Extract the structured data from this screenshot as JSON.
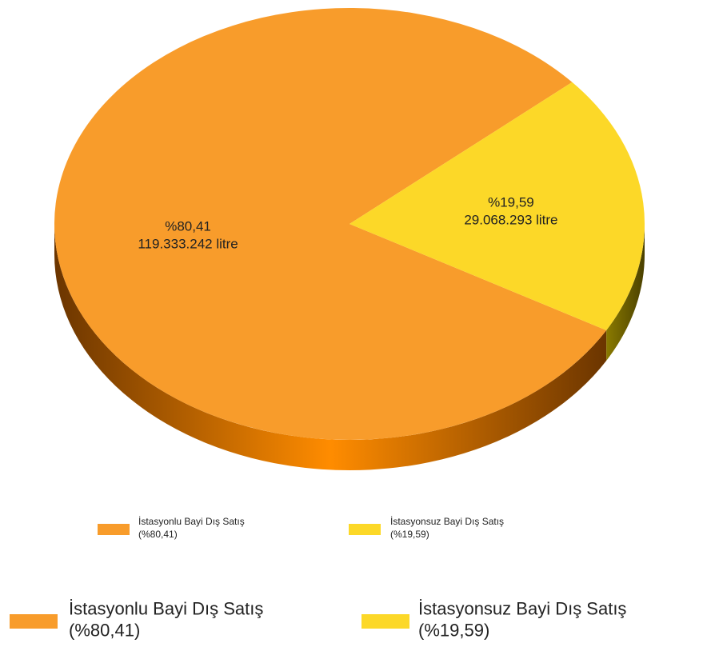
{
  "chart_data": {
    "type": "pie",
    "categories": [
      "İstasyonlu Bayi Dış Satış",
      "İstasyonsuz Bayi Dış Satış"
    ],
    "values": [
      80.41,
      19.59
    ],
    "value_labels": [
      "%80,41",
      "%19,59"
    ],
    "volumes": [
      119333242,
      29068293
    ],
    "volume_labels": [
      "119.333.242 litre",
      "29.068.293 litre"
    ],
    "legend_labels": [
      "(%80,41)",
      "(%19,59)"
    ],
    "colors": [
      "#f89c2b",
      "#fcd828"
    ]
  }
}
